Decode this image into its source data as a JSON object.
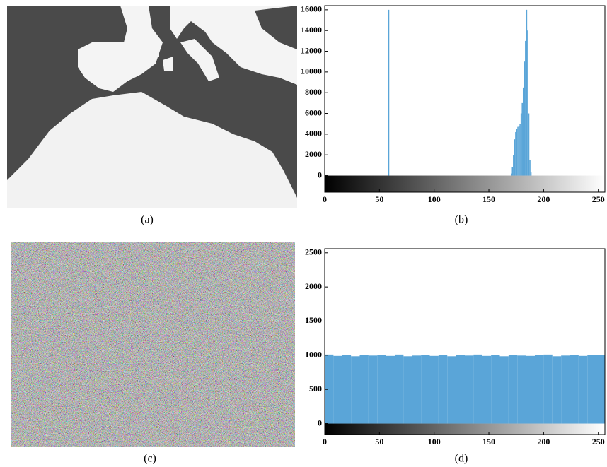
{
  "chart_data": [
    {
      "type": "bar",
      "x": [
        58,
        170,
        171,
        172,
        173,
        174,
        175,
        176,
        177,
        178,
        179,
        180,
        181,
        182,
        183,
        184,
        185,
        186,
        187,
        188
      ],
      "values": [
        16000,
        200,
        800,
        2000,
        3500,
        4200,
        4500,
        4700,
        4800,
        5000,
        6000,
        7000,
        8500,
        11000,
        13000,
        16000,
        14000,
        6000,
        1500,
        300
      ],
      "color": "#5aa5d8",
      "xlim": [
        0,
        256
      ],
      "xticks": [
        0,
        50,
        100,
        150,
        200,
        250
      ],
      "ylim": [
        -1600,
        16400
      ],
      "yticks": [
        0,
        2000,
        4000,
        6000,
        8000,
        10000,
        12000,
        14000,
        16000
      ],
      "caption": "(b)"
    },
    {
      "type": "histogram",
      "bins": [
        0,
        8,
        16,
        24,
        32,
        40,
        48,
        56,
        64,
        72,
        80,
        88,
        96,
        104,
        112,
        120,
        128,
        136,
        144,
        152,
        160,
        168,
        176,
        184,
        192,
        200,
        208,
        216,
        224,
        232,
        240,
        248,
        256
      ],
      "values": [
        1010,
        990,
        1000,
        985,
        1005,
        995,
        1000,
        990,
        1010,
        985,
        995,
        1000,
        990,
        1005,
        985,
        1000,
        995,
        1010,
        990,
        1000,
        985,
        1005,
        995,
        990,
        1000,
        1010,
        985,
        995,
        1005,
        990,
        1000,
        1005
      ],
      "color": "#5aa5d8",
      "xlim": [
        0,
        256
      ],
      "xticks": [
        0,
        50,
        100,
        150,
        200,
        250
      ],
      "ylim": [
        -160,
        2560
      ],
      "yticks": [
        0,
        500,
        1000,
        1500,
        2000,
        2500
      ],
      "caption": "(d)"
    }
  ],
  "captions": [
    "(a)",
    "(c)"
  ]
}
